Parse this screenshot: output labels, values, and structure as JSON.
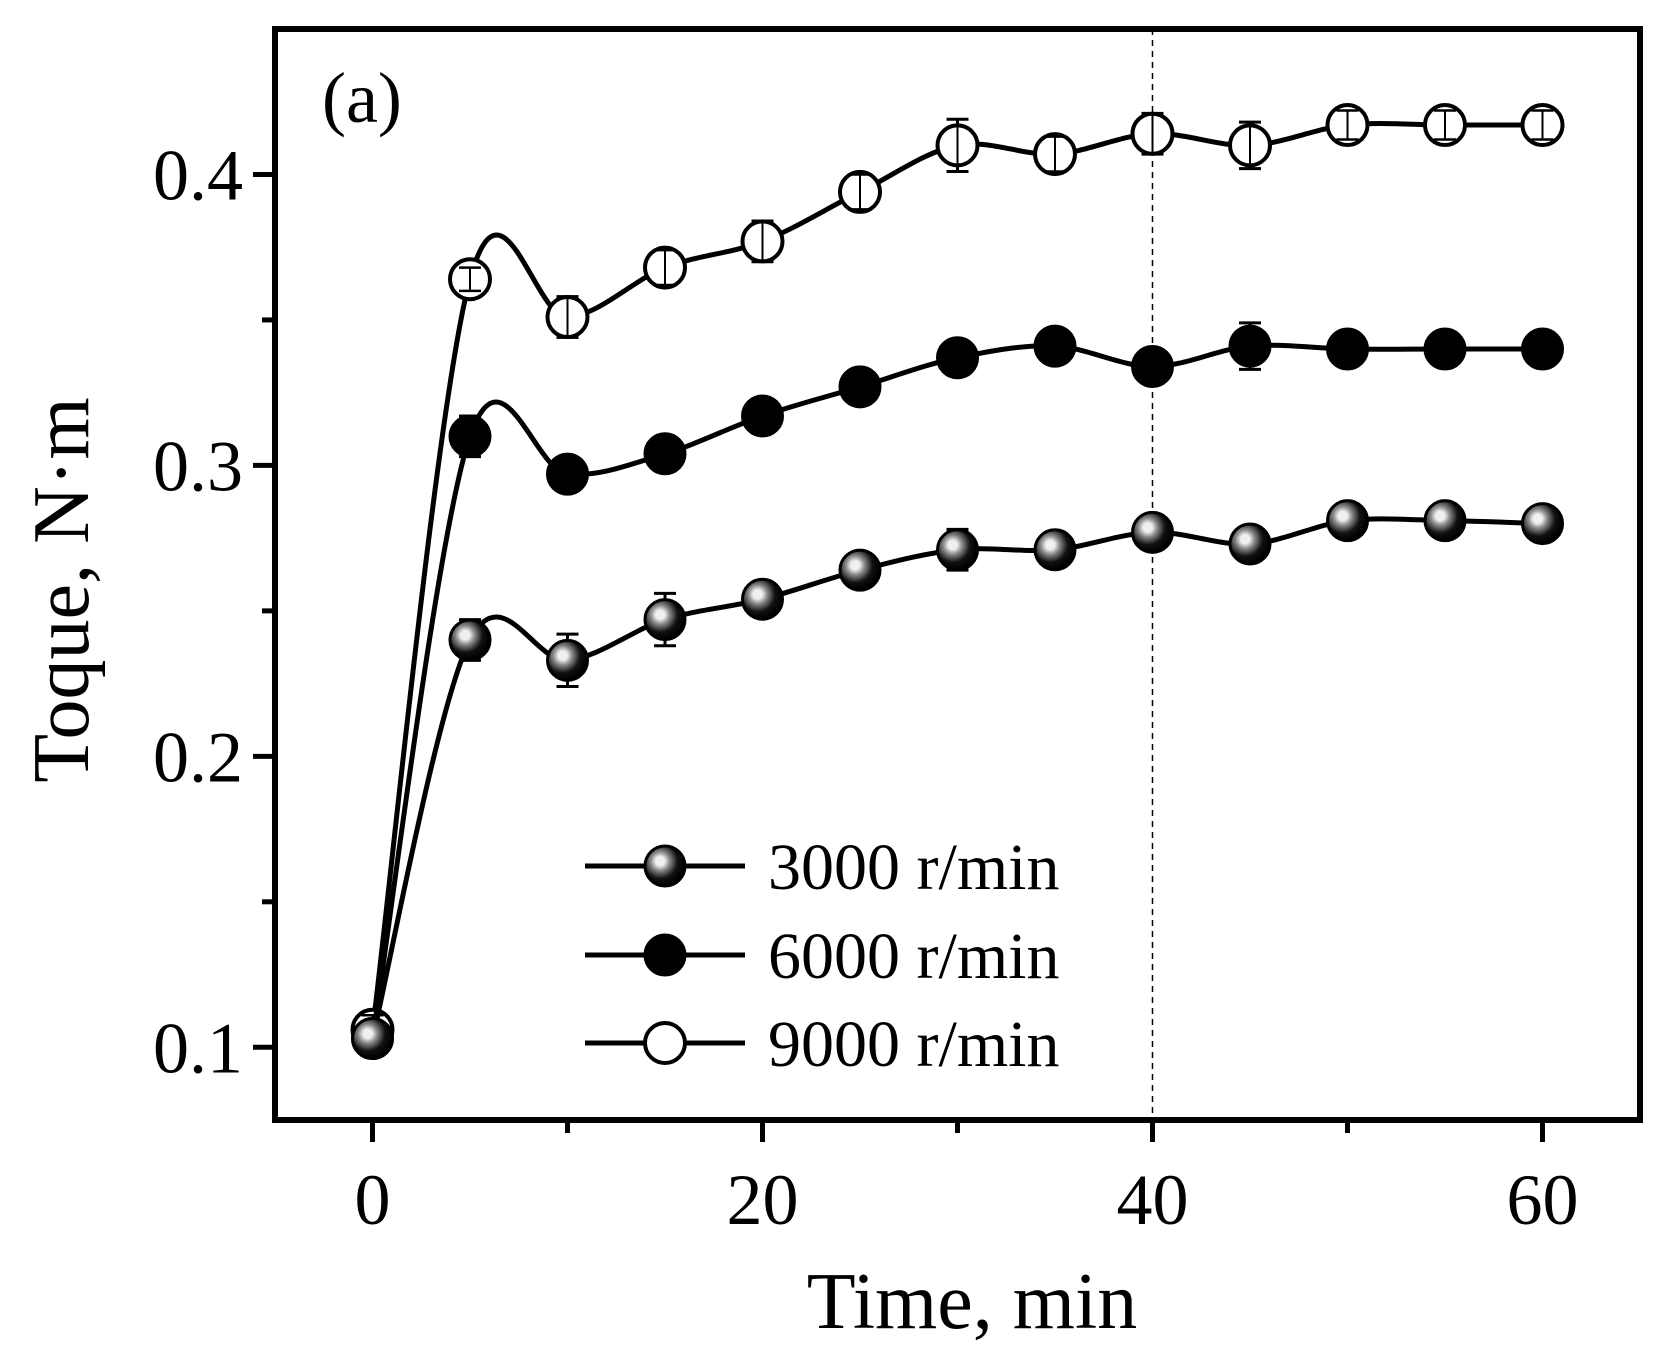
{
  "chart_data": {
    "type": "line",
    "panel_label": "(a)",
    "xlabel": "Time, min",
    "ylabel": "Toque, N·m",
    "xlim": [
      -5,
      65
    ],
    "ylim": [
      0.075,
      0.45
    ],
    "x_ticks": [
      0,
      20,
      40,
      60
    ],
    "x_tick_labels": [
      "0",
      "20",
      "40",
      "60"
    ],
    "x_minor_ticks": [
      10,
      30,
      50
    ],
    "y_ticks": [
      0.1,
      0.2,
      0.3,
      0.4
    ],
    "y_tick_labels": [
      "0.1",
      "0.2",
      "0.3",
      "0.4"
    ],
    "y_minor_ticks": [
      0.15,
      0.25,
      0.35
    ],
    "reference_line_x": 40,
    "grid": false,
    "legend_position": "bottom-center",
    "x": [
      0,
      5,
      10,
      15,
      20,
      25,
      30,
      35,
      40,
      45,
      50,
      55,
      60
    ],
    "series": [
      {
        "name": "3000 r/min",
        "marker": "shaded",
        "values": [
          0.103,
          0.24,
          0.233,
          0.247,
          0.254,
          0.264,
          0.271,
          0.271,
          0.277,
          0.273,
          0.281,
          0.281,
          0.28
        ],
        "errors": [
          0.002,
          0.007,
          0.009,
          0.009,
          0.004,
          0.003,
          0.007,
          0.003,
          0.003,
          0.004,
          0.003,
          0.003,
          0.003
        ]
      },
      {
        "name": "6000 r/min",
        "marker": "filled",
        "values": [
          0.103,
          0.31,
          0.297,
          0.304,
          0.317,
          0.327,
          0.337,
          0.341,
          0.334,
          0.341,
          0.34,
          0.34,
          0.34
        ],
        "errors": [
          0.002,
          0.007,
          0.005,
          0.004,
          0.004,
          0.003,
          0.004,
          0.003,
          0.003,
          0.008,
          0.003,
          0.003,
          0.003
        ]
      },
      {
        "name": "9000 r/min",
        "marker": "open",
        "values": [
          0.106,
          0.364,
          0.351,
          0.368,
          0.377,
          0.394,
          0.41,
          0.407,
          0.414,
          0.41,
          0.417,
          0.417,
          0.417
        ],
        "errors": [
          0.005,
          0.004,
          0.007,
          0.006,
          0.007,
          0.006,
          0.009,
          0.006,
          0.007,
          0.008,
          0.005,
          0.005,
          0.005
        ]
      }
    ],
    "colors": {
      "axis": "#000000",
      "line": "#000000",
      "marker_filled": "#000000",
      "marker_open": "#ffffff",
      "marker_shaded_dark": "#000000",
      "marker_shaded_mid": "#8a8a8a",
      "marker_shaded_light": "#f0f0f0"
    }
  }
}
